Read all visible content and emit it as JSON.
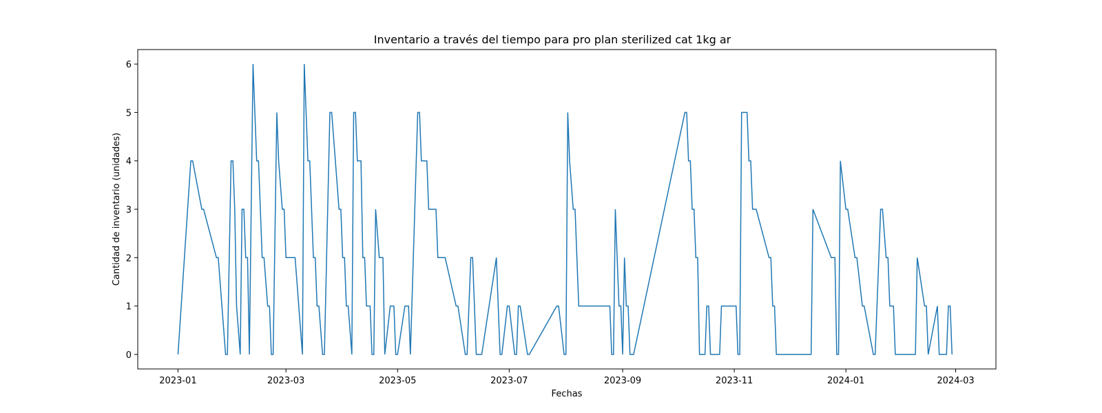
{
  "chart_data": {
    "type": "line",
    "title": "Inventario a través del tiempo para pro plan sterilized cat 1kg ar",
    "xlabel": "Fechas",
    "ylabel": "Cantidad de inventario (unidades)",
    "xlim": [
      "2022-12-10",
      "2024-03-23"
    ],
    "ylim": [
      -0.3,
      6.3
    ],
    "grid": false,
    "line_color": "#1f77b4",
    "x_ticks": [
      "2023-01",
      "2023-03",
      "2023-05",
      "2023-07",
      "2023-09",
      "2023-11",
      "2024-01",
      "2024-03"
    ],
    "x_tick_dates": [
      "2023-01-01",
      "2023-03-01",
      "2023-05-01",
      "2023-07-01",
      "2023-09-01",
      "2023-11-01",
      "2024-01-01",
      "2024-03-01"
    ],
    "y_ticks": [
      0,
      1,
      2,
      3,
      4,
      5,
      6
    ],
    "series": [
      {
        "style": "steps",
        "x": [
          "2023-01-01",
          "2023-01-08",
          "2023-01-09",
          "2023-01-14",
          "2023-01-15",
          "2023-01-22",
          "2023-01-23",
          "2023-01-27",
          "2023-01-28",
          "2023-01-30",
          "2023-01-31",
          "2023-02-01",
          "2023-02-02",
          "2023-02-04",
          "2023-02-05",
          "2023-02-06",
          "2023-02-07",
          "2023-02-08",
          "2023-02-09",
          "2023-02-11",
          "2023-02-12",
          "2023-02-13",
          "2023-02-14",
          "2023-02-16",
          "2023-02-17",
          "2023-02-19",
          "2023-02-20",
          "2023-02-21",
          "2023-02-22",
          "2023-02-24",
          "2023-02-25",
          "2023-02-27",
          "2023-02-28",
          "2023-03-01",
          "2023-03-02",
          "2023-03-04",
          "2023-03-05",
          "2023-03-06",
          "2023-03-10",
          "2023-03-11",
          "2023-03-12",
          "2023-03-13",
          "2023-03-14",
          "2023-03-16",
          "2023-03-17",
          "2023-03-18",
          "2023-03-19",
          "2023-03-21",
          "2023-03-22",
          "2023-03-25",
          "2023-03-26",
          "2023-03-30",
          "2023-03-31",
          "2023-04-01",
          "2023-04-02",
          "2023-04-03",
          "2023-04-04",
          "2023-04-06",
          "2023-04-07",
          "2023-04-08",
          "2023-04-09",
          "2023-04-11",
          "2023-04-12",
          "2023-04-13",
          "2023-04-14",
          "2023-04-16",
          "2023-04-17",
          "2023-04-18",
          "2023-04-19",
          "2023-04-21",
          "2023-04-22",
          "2023-04-23",
          "2023-04-24",
          "2023-04-27",
          "2023-04-28",
          "2023-04-29",
          "2023-04-30",
          "2023-05-01",
          "2023-05-05",
          "2023-05-06",
          "2023-05-07",
          "2023-05-08",
          "2023-05-12",
          "2023-05-13",
          "2023-05-14",
          "2023-05-17",
          "2023-05-18",
          "2023-05-22",
          "2023-05-23",
          "2023-05-26",
          "2023-05-27",
          "2023-06-02",
          "2023-06-03",
          "2023-06-07",
          "2023-06-08",
          "2023-06-10",
          "2023-06-11",
          "2023-06-13",
          "2023-06-14",
          "2023-06-15",
          "2023-06-16",
          "2023-06-24",
          "2023-06-25",
          "2023-06-26",
          "2023-06-27",
          "2023-06-30",
          "2023-07-01",
          "2023-07-04",
          "2023-07-05",
          "2023-07-06",
          "2023-07-07",
          "2023-07-11",
          "2023-07-12",
          "2023-07-27",
          "2023-07-28",
          "2023-07-31",
          "2023-08-01",
          "2023-08-02",
          "2023-08-03",
          "2023-08-05",
          "2023-08-06",
          "2023-08-07",
          "2023-08-08",
          "2023-08-10",
          "2023-08-25",
          "2023-08-26",
          "2023-08-27",
          "2023-08-28",
          "2023-08-29",
          "2023-08-30",
          "2023-08-31",
          "2023-09-01",
          "2023-09-02",
          "2023-09-03",
          "2023-09-04",
          "2023-09-05",
          "2023-09-06",
          "2023-09-07",
          "2023-10-05",
          "2023-10-06",
          "2023-10-07",
          "2023-10-08",
          "2023-10-09",
          "2023-10-10",
          "2023-10-11",
          "2023-10-12",
          "2023-10-13",
          "2023-10-16",
          "2023-10-17",
          "2023-10-18",
          "2023-10-19",
          "2023-10-24",
          "2023-10-25",
          "2023-11-02",
          "2023-11-03",
          "2023-11-04",
          "2023-11-05",
          "2023-11-08",
          "2023-11-09",
          "2023-11-10",
          "2023-11-11",
          "2023-11-12",
          "2023-11-13",
          "2023-11-20",
          "2023-11-21",
          "2023-11-22",
          "2023-11-23",
          "2023-11-24",
          "2023-12-13",
          "2023-12-14",
          "2023-12-24",
          "2023-12-25",
          "2023-12-26",
          "2023-12-27",
          "2023-12-28",
          "2023-12-29",
          "2024-01-01",
          "2024-01-02",
          "2024-01-06",
          "2024-01-07",
          "2024-01-10",
          "2024-01-11",
          "2024-01-16",
          "2024-01-17",
          "2024-01-20",
          "2024-01-21",
          "2024-01-23",
          "2024-01-24",
          "2024-01-25",
          "2024-01-27",
          "2024-01-28",
          "2024-02-07",
          "2024-02-08",
          "2024-02-09",
          "2024-02-13",
          "2024-02-14",
          "2024-02-15",
          "2024-02-20",
          "2024-02-21",
          "2024-02-25",
          "2024-02-26",
          "2024-02-27",
          "2024-02-28"
        ],
        "y": [
          0,
          4,
          4,
          3,
          3,
          2,
          2,
          0,
          0,
          4,
          4,
          3,
          1,
          0,
          3,
          3,
          2,
          2,
          0,
          6,
          5,
          4,
          4,
          2,
          2,
          1,
          1,
          0,
          0,
          5,
          4,
          3,
          3,
          2,
          2,
          2,
          2,
          2,
          0,
          6,
          5,
          4,
          4,
          2,
          2,
          1,
          1,
          0,
          0,
          5,
          5,
          3,
          3,
          2,
          2,
          1,
          1,
          0,
          5,
          5,
          4,
          4,
          2,
          2,
          1,
          1,
          0,
          0,
          3,
          2,
          2,
          2,
          0,
          1,
          1,
          1,
          0,
          0,
          1,
          1,
          1,
          0,
          5,
          5,
          4,
          4,
          3,
          3,
          2,
          2,
          2,
          1,
          1,
          0,
          0,
          2,
          2,
          0,
          0,
          0,
          0,
          2,
          1,
          0,
          0,
          1,
          1,
          0,
          0,
          1,
          1,
          0,
          0,
          1,
          1,
          0,
          0,
          5,
          4,
          3,
          3,
          2,
          1,
          1,
          1,
          0,
          0,
          3,
          2,
          1,
          1,
          0,
          2,
          1,
          1,
          0,
          0,
          0,
          5,
          5,
          4,
          4,
          3,
          3,
          2,
          2,
          0,
          0,
          1,
          1,
          0,
          0,
          1,
          1,
          0,
          0,
          5,
          5,
          4,
          4,
          3,
          3,
          3,
          2,
          2,
          1,
          1,
          0,
          0,
          3,
          2,
          2,
          2,
          0,
          0,
          4,
          3,
          3,
          2,
          2,
          1,
          1,
          0,
          0,
          3,
          3,
          2,
          2,
          1,
          1,
          0,
          0,
          0,
          2,
          1,
          1,
          0,
          1,
          0,
          0,
          1,
          1,
          0
        ]
      }
    ]
  }
}
